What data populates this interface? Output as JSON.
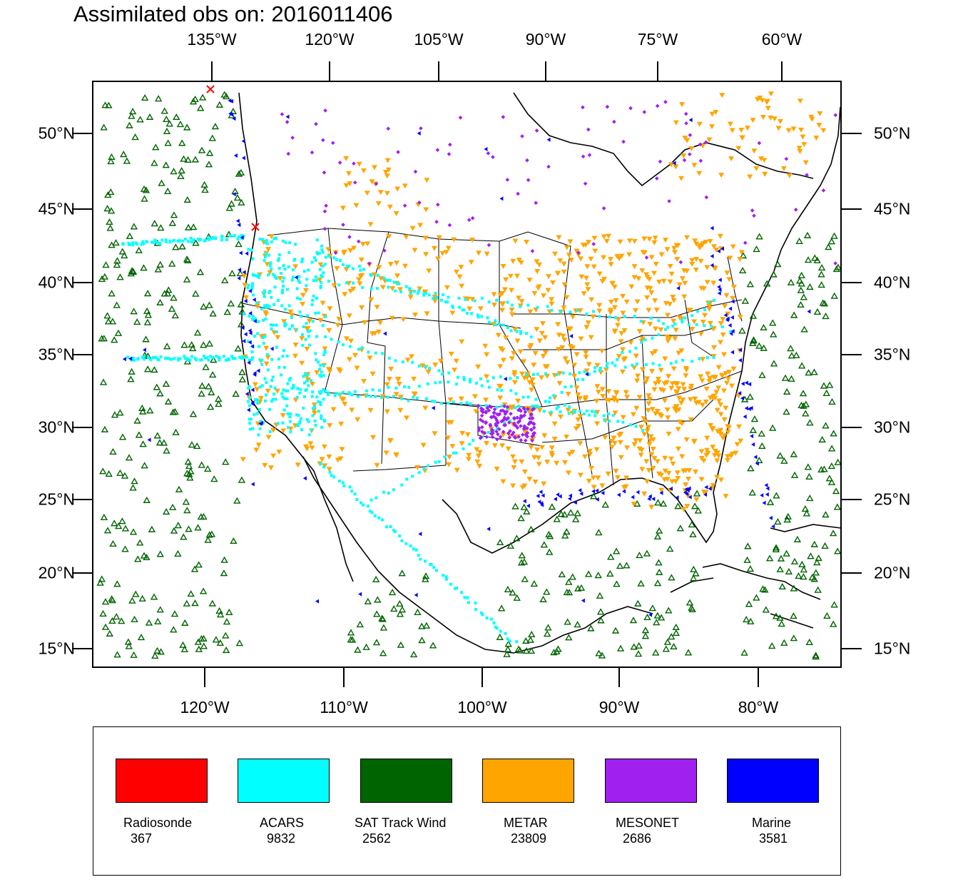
{
  "title": "Assimilated obs on: 2016011406",
  "top_axis": [
    "135°W",
    "120°W",
    "105°W",
    "90°W",
    "75°W",
    "60°W"
  ],
  "bottom_axis": [
    "120°W",
    "110°W",
    "100°W",
    "90°W",
    "80°W"
  ],
  "lat_axis": [
    "50°N",
    "45°N",
    "40°N",
    "35°N",
    "30°N",
    "25°N",
    "20°N",
    "15°N"
  ],
  "legend": [
    {
      "name": "Radiosonde",
      "count": "367",
      "color": "#ff0000"
    },
    {
      "name": "ACARS",
      "count": "9832",
      "color": "#00ffff"
    },
    {
      "name": "SAT Track Wind",
      "count": "2562",
      "color": "#006400"
    },
    {
      "name": "METAR",
      "count": "23809",
      "color": "#ffa500"
    },
    {
      "name": "MESONET",
      "count": "2686",
      "color": "#a020f0"
    },
    {
      "name": "Marine",
      "count": "3581",
      "color": "#0000ff"
    }
  ]
}
